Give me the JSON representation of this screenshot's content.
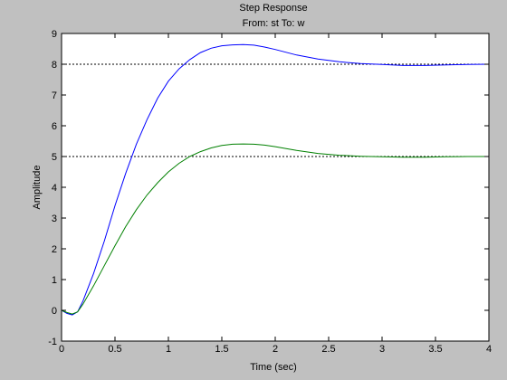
{
  "chart_data": {
    "type": "line",
    "title": "Step Response",
    "subtitle": "From: st  To: w",
    "xlabel": "Time (sec)",
    "ylabel": "Amplitude",
    "xlim": [
      0,
      4
    ],
    "ylim": [
      -1,
      9
    ],
    "xticks": [
      0,
      0.5,
      1,
      1.5,
      2,
      2.5,
      3,
      3.5,
      4
    ],
    "xtick_labels": [
      "0",
      "0.5",
      "1",
      "1.5",
      "2",
      "2.5",
      "3",
      "3.5",
      "4"
    ],
    "yticks": [
      -1,
      0,
      1,
      2,
      3,
      4,
      5,
      6,
      7,
      8,
      9
    ],
    "ytick_labels": [
      "-1",
      "0",
      "1",
      "2",
      "3",
      "4",
      "5",
      "6",
      "7",
      "8",
      "9"
    ],
    "grid": false,
    "steady_state_lines": [
      8,
      5
    ],
    "series": [
      {
        "color": "#0000ff",
        "x": [
          0,
          0.05,
          0.1,
          0.15,
          0.2,
          0.3,
          0.4,
          0.5,
          0.6,
          0.7,
          0.8,
          0.9,
          1.0,
          1.1,
          1.2,
          1.3,
          1.4,
          1.5,
          1.6,
          1.7,
          1.8,
          1.9,
          2.0,
          2.2,
          2.4,
          2.6,
          2.8,
          3.0,
          3.2,
          3.4,
          3.6,
          3.8,
          4.0
        ],
        "y": [
          0,
          -0.1,
          -0.15,
          -0.05,
          0.3,
          1.2,
          2.25,
          3.4,
          4.45,
          5.4,
          6.2,
          6.9,
          7.45,
          7.85,
          8.15,
          8.38,
          8.52,
          8.6,
          8.63,
          8.64,
          8.62,
          8.56,
          8.48,
          8.3,
          8.17,
          8.08,
          8.02,
          7.99,
          7.96,
          7.96,
          7.98,
          7.99,
          8.0
        ]
      },
      {
        "color": "#008000",
        "x": [
          0,
          0.05,
          0.1,
          0.15,
          0.2,
          0.3,
          0.4,
          0.5,
          0.6,
          0.7,
          0.8,
          0.9,
          1.0,
          1.1,
          1.2,
          1.3,
          1.4,
          1.5,
          1.6,
          1.7,
          1.8,
          1.9,
          2.0,
          2.2,
          2.4,
          2.6,
          2.8,
          3.0,
          3.2,
          3.4,
          3.6,
          3.8,
          4.0
        ],
        "y": [
          0,
          -0.07,
          -0.12,
          -0.05,
          0.2,
          0.8,
          1.45,
          2.1,
          2.72,
          3.27,
          3.75,
          4.15,
          4.5,
          4.78,
          5.0,
          5.16,
          5.28,
          5.36,
          5.4,
          5.41,
          5.4,
          5.37,
          5.32,
          5.2,
          5.1,
          5.04,
          5.01,
          4.99,
          4.98,
          4.98,
          4.99,
          5.0,
          5.0
        ]
      }
    ]
  }
}
